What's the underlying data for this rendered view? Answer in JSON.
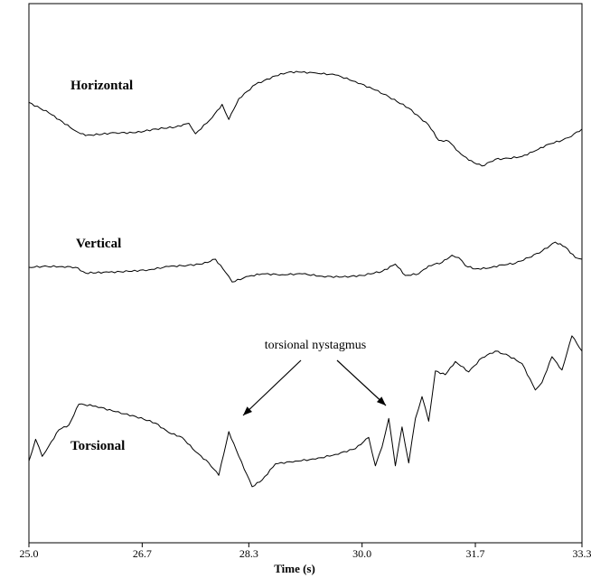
{
  "chart_data": {
    "type": "line",
    "xlabel": "Time (s)",
    "x_ticks": [
      "25.0",
      "26.7",
      "28.3",
      "30.0",
      "31.7",
      "33.3"
    ],
    "xlim": [
      25.0,
      33.3
    ],
    "y_axis_shown": false,
    "grid": false,
    "annotation": {
      "text": "torsional nystagmus",
      "arrow_targets": [
        {
          "x": 28.1,
          "series": "Torsional"
        },
        {
          "x": 30.3,
          "series": "Torsional"
        }
      ]
    },
    "series": [
      {
        "name": "Horizontal",
        "x": [
          25.0,
          25.3,
          25.7,
          25.85,
          26.3,
          26.6,
          26.9,
          27.2,
          27.4,
          27.5,
          27.75,
          27.9,
          28.0,
          28.15,
          28.4,
          28.7,
          28.9,
          29.05,
          29.3,
          29.6,
          29.9,
          30.2,
          30.4,
          30.7,
          31.0,
          31.15,
          31.3,
          31.45,
          31.6,
          31.8,
          32.0,
          32.2,
          32.4,
          32.6,
          32.8,
          33.0,
          33.1,
          33.3
        ],
        "y": [
          5.2,
          4.1,
          2.2,
          1.7,
          2.0,
          2.0,
          2.4,
          2.6,
          3.0,
          1.9,
          3.6,
          5.0,
          3.4,
          5.6,
          7.1,
          8.0,
          8.4,
          8.4,
          8.3,
          8.1,
          7.4,
          6.5,
          5.8,
          4.6,
          2.8,
          1.2,
          1.1,
          0.0,
          -0.9,
          -1.5,
          -0.8,
          -0.7,
          -0.5,
          0.1,
          0.8,
          1.2,
          1.5,
          2.4
        ]
      },
      {
        "name": "Vertical",
        "x": [
          25.0,
          25.2,
          25.5,
          25.7,
          25.85,
          26.2,
          26.5,
          26.8,
          27.1,
          27.3,
          27.6,
          27.8,
          27.95,
          28.05,
          28.3,
          28.5,
          28.8,
          29.1,
          29.4,
          29.7,
          30.0,
          30.3,
          30.5,
          30.65,
          30.85,
          31.0,
          31.2,
          31.35,
          31.45,
          31.55,
          31.7,
          31.9,
          32.1,
          32.3,
          32.5,
          32.7,
          32.9,
          33.05,
          33.2,
          33.3
        ],
        "y": [
          0.0,
          0.1,
          0.1,
          0.0,
          -0.7,
          -0.6,
          -0.5,
          -0.3,
          0.1,
          0.2,
          0.4,
          1.0,
          -0.6,
          -1.8,
          -1.1,
          -0.8,
          -0.9,
          -0.8,
          -1.1,
          -1.2,
          -1.0,
          -0.5,
          0.4,
          -1.0,
          -0.8,
          0.2,
          0.6,
          1.5,
          1.2,
          0.2,
          -0.2,
          -0.1,
          0.3,
          0.5,
          1.2,
          2.0,
          3.1,
          2.5,
          1.2,
          1.0
        ]
      },
      {
        "name": "Torsional",
        "x": [
          25.0,
          25.1,
          25.2,
          25.3,
          25.45,
          25.6,
          25.75,
          26.0,
          26.3,
          26.6,
          26.9,
          27.1,
          27.3,
          27.5,
          27.7,
          27.85,
          28.0,
          28.15,
          28.35,
          28.5,
          28.7,
          29.0,
          29.3,
          29.6,
          29.9,
          30.1,
          30.2,
          30.3,
          30.4,
          30.5,
          30.6,
          30.7,
          30.8,
          30.9,
          31.0,
          31.1,
          31.25,
          31.4,
          31.6,
          31.8,
          32.0,
          32.2,
          32.4,
          32.6,
          32.7,
          32.85,
          33.0,
          33.15,
          33.3
        ],
        "y": [
          -1.0,
          1.3,
          -0.5,
          0.6,
          2.3,
          2.8,
          5.0,
          4.8,
          4.2,
          3.7,
          3.0,
          2.0,
          1.5,
          0.0,
          -1.2,
          -2.5,
          2.1,
          -0.5,
          -3.7,
          -3.0,
          -1.3,
          -1.0,
          -0.8,
          -0.3,
          0.3,
          1.5,
          -1.5,
          0.5,
          3.5,
          -1.5,
          2.6,
          -1.2,
          3.5,
          5.8,
          3.2,
          8.5,
          8.1,
          9.5,
          8.4,
          9.9,
          10.6,
          10.1,
          9.3,
          6.5,
          7.3,
          10.0,
          8.6,
          12.2,
          10.6
        ]
      }
    ]
  }
}
